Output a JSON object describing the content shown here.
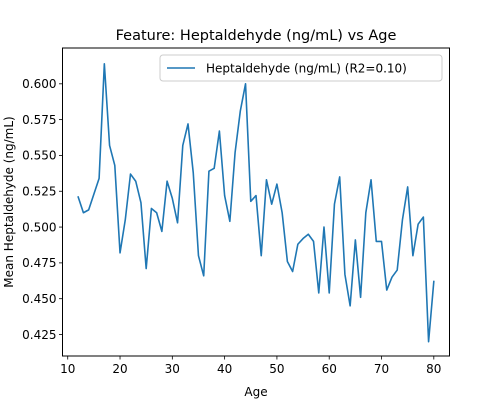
{
  "chart_data": {
    "type": "line",
    "title": "Feature: Heptaldehyde (ng/mL) vs Age",
    "xlabel": "Age",
    "ylabel": "Mean Heptaldehyde (ng/mL)",
    "xlim": [
      9,
      83
    ],
    "ylim": [
      0.41,
      0.625
    ],
    "xticks": [
      10,
      20,
      30,
      40,
      50,
      60,
      70,
      80
    ],
    "yticks": [
      0.425,
      0.45,
      0.475,
      0.5,
      0.525,
      0.55,
      0.575,
      0.6
    ],
    "ytick_labels": [
      "0.425",
      "0.450",
      "0.475",
      "0.500",
      "0.525",
      "0.550",
      "0.575",
      "0.600"
    ],
    "grid": false,
    "legend_position": "top-right",
    "series": [
      {
        "name": "Heptaldehyde (ng/mL) (R2=0.10)",
        "color": "#1f77b4",
        "x": [
          12,
          13,
          14,
          15,
          16,
          17,
          18,
          19,
          20,
          21,
          22,
          23,
          24,
          25,
          26,
          27,
          28,
          29,
          30,
          31,
          32,
          33,
          34,
          35,
          36,
          37,
          38,
          39,
          40,
          41,
          42,
          43,
          44,
          45,
          46,
          47,
          48,
          49,
          50,
          51,
          52,
          53,
          54,
          55,
          56,
          57,
          58,
          59,
          60,
          61,
          62,
          63,
          64,
          65,
          66,
          67,
          68,
          69,
          70,
          71,
          72,
          73,
          74,
          75,
          76,
          77,
          78,
          79,
          80
        ],
        "y": [
          0.521,
          0.51,
          0.512,
          0.523,
          0.534,
          0.614,
          0.557,
          0.543,
          0.482,
          0.505,
          0.537,
          0.532,
          0.517,
          0.471,
          0.513,
          0.51,
          0.497,
          0.532,
          0.52,
          0.503,
          0.557,
          0.572,
          0.538,
          0.48,
          0.466,
          0.539,
          0.541,
          0.567,
          0.522,
          0.504,
          0.552,
          0.581,
          0.6,
          0.518,
          0.522,
          0.48,
          0.533,
          0.516,
          0.53,
          0.51,
          0.476,
          0.469,
          0.488,
          0.492,
          0.495,
          0.49,
          0.454,
          0.5,
          0.454,
          0.516,
          0.535,
          0.467,
          0.445,
          0.491,
          0.451,
          0.51,
          0.533,
          0.49,
          0.49,
          0.456,
          0.465,
          0.47,
          0.505,
          0.528,
          0.48,
          0.502,
          0.507,
          0.42,
          0.462
        ]
      }
    ]
  }
}
